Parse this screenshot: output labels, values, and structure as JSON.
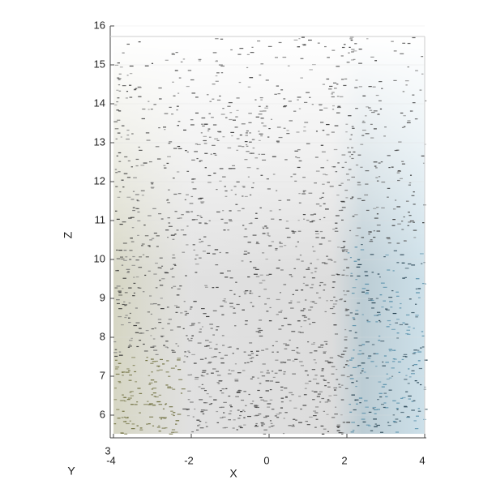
{
  "chart_data": {
    "type": "scatter3d",
    "xlabel": "X",
    "ylabel": "Y",
    "zlabel": "Z",
    "xlim": [
      -4,
      4
    ],
    "xticks": [
      -4,
      -2,
      0,
      2,
      4
    ],
    "zlim": [
      5.5,
      16
    ],
    "zticks": [
      6,
      7,
      8,
      9,
      10,
      11,
      12,
      13,
      14,
      15,
      16
    ],
    "yticks": [
      3
    ],
    "grid": true
  }
}
